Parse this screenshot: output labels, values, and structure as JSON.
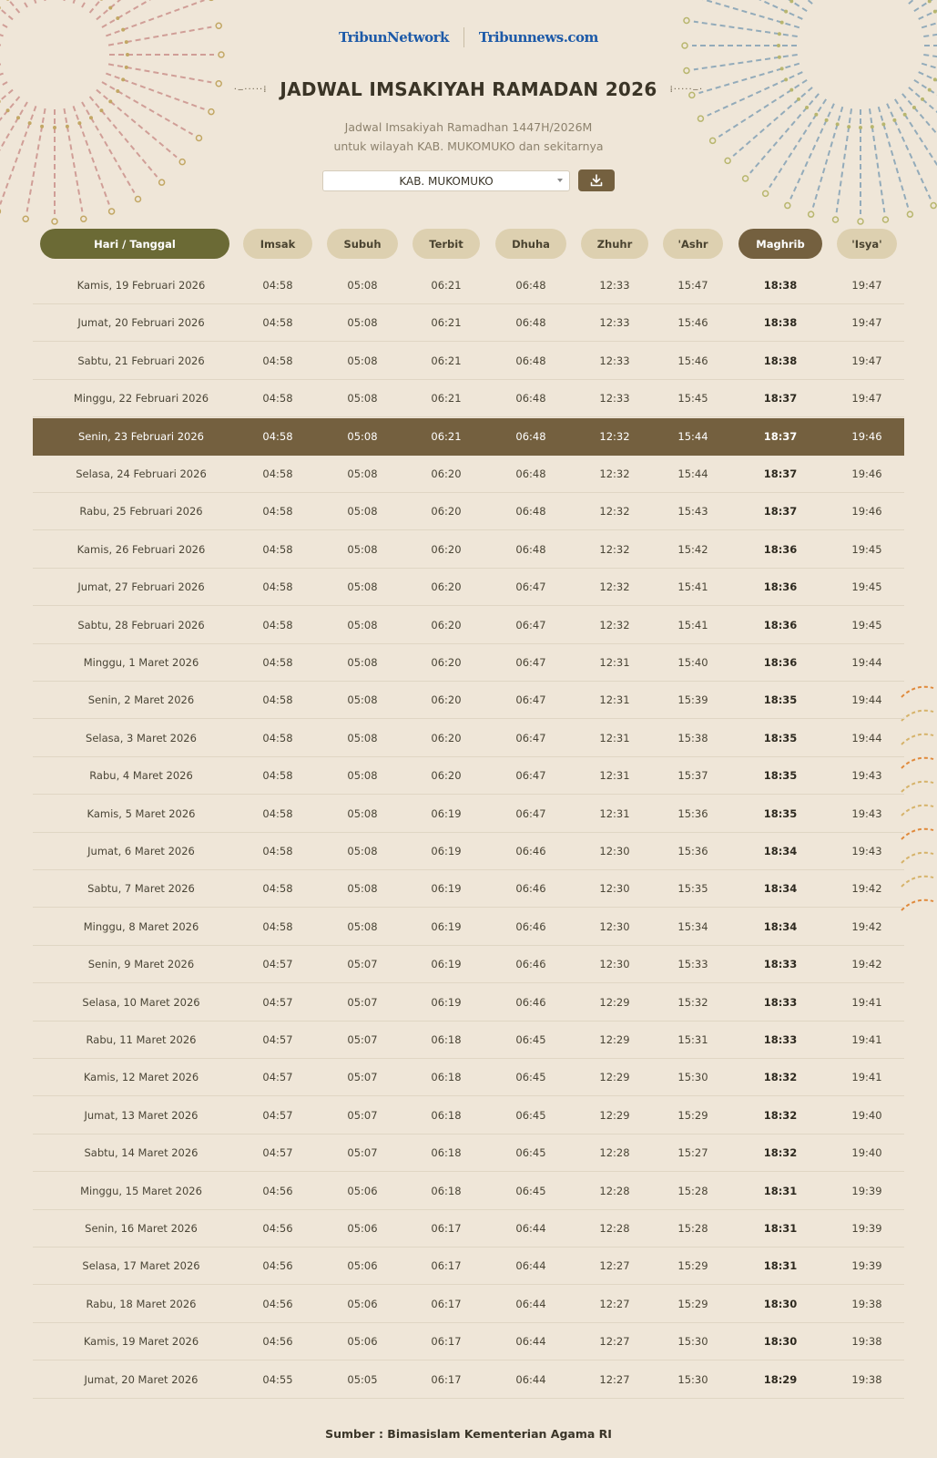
{
  "header": {
    "logos": [
      "TribunNetwork",
      "Tribunnews.com"
    ],
    "title": "JADWAL IMSAKIYAH RAMADAN 2026",
    "subtitle_line1": "Jadwal Imsakiyah Ramadhan 1447H/2026M",
    "subtitle_line2": "untuk wilayah KAB. MUKOMUKO dan sekitarnya",
    "region_select": "KAB. MUKOMUKO",
    "download_icon": "download-icon"
  },
  "colors": {
    "background": "#efe6d8",
    "pill": "#ddd0b0",
    "date_pill": "#6b6a35",
    "accent_brown": "#74603f"
  },
  "table": {
    "columns": [
      "Hari / Tanggal",
      "Imsak",
      "Subuh",
      "Terbit",
      "Dhuha",
      "Zhuhr",
      "'Ashr",
      "Maghrib",
      "'Isya'"
    ],
    "highlighted_row": "Senin, 23 Februari 2026",
    "rows": [
      [
        "Kamis, 19 Februari 2026",
        "04:58",
        "05:08",
        "06:21",
        "06:48",
        "12:33",
        "15:47",
        "18:38",
        "19:47"
      ],
      [
        "Jumat, 20 Februari 2026",
        "04:58",
        "05:08",
        "06:21",
        "06:48",
        "12:33",
        "15:46",
        "18:38",
        "19:47"
      ],
      [
        "Sabtu, 21 Februari 2026",
        "04:58",
        "05:08",
        "06:21",
        "06:48",
        "12:33",
        "15:46",
        "18:38",
        "19:47"
      ],
      [
        "Minggu, 22 Februari 2026",
        "04:58",
        "05:08",
        "06:21",
        "06:48",
        "12:33",
        "15:45",
        "18:37",
        "19:47"
      ],
      [
        "Senin, 23 Februari 2026",
        "04:58",
        "05:08",
        "06:21",
        "06:48",
        "12:32",
        "15:44",
        "18:37",
        "19:46"
      ],
      [
        "Selasa, 24 Februari 2026",
        "04:58",
        "05:08",
        "06:20",
        "06:48",
        "12:32",
        "15:44",
        "18:37",
        "19:46"
      ],
      [
        "Rabu, 25 Februari 2026",
        "04:58",
        "05:08",
        "06:20",
        "06:48",
        "12:32",
        "15:43",
        "18:37",
        "19:46"
      ],
      [
        "Kamis, 26 Februari 2026",
        "04:58",
        "05:08",
        "06:20",
        "06:48",
        "12:32",
        "15:42",
        "18:36",
        "19:45"
      ],
      [
        "Jumat, 27 Februari 2026",
        "04:58",
        "05:08",
        "06:20",
        "06:47",
        "12:32",
        "15:41",
        "18:36",
        "19:45"
      ],
      [
        "Sabtu, 28 Februari 2026",
        "04:58",
        "05:08",
        "06:20",
        "06:47",
        "12:32",
        "15:41",
        "18:36",
        "19:45"
      ],
      [
        "Minggu, 1 Maret 2026",
        "04:58",
        "05:08",
        "06:20",
        "06:47",
        "12:31",
        "15:40",
        "18:36",
        "19:44"
      ],
      [
        "Senin, 2 Maret 2026",
        "04:58",
        "05:08",
        "06:20",
        "06:47",
        "12:31",
        "15:39",
        "18:35",
        "19:44"
      ],
      [
        "Selasa, 3 Maret 2026",
        "04:58",
        "05:08",
        "06:20",
        "06:47",
        "12:31",
        "15:38",
        "18:35",
        "19:44"
      ],
      [
        "Rabu, 4 Maret 2026",
        "04:58",
        "05:08",
        "06:20",
        "06:47",
        "12:31",
        "15:37",
        "18:35",
        "19:43"
      ],
      [
        "Kamis, 5 Maret 2026",
        "04:58",
        "05:08",
        "06:19",
        "06:47",
        "12:31",
        "15:36",
        "18:35",
        "19:43"
      ],
      [
        "Jumat, 6 Maret 2026",
        "04:58",
        "05:08",
        "06:19",
        "06:46",
        "12:30",
        "15:36",
        "18:34",
        "19:43"
      ],
      [
        "Sabtu, 7 Maret 2026",
        "04:58",
        "05:08",
        "06:19",
        "06:46",
        "12:30",
        "15:35",
        "18:34",
        "19:42"
      ],
      [
        "Minggu, 8 Maret 2026",
        "04:58",
        "05:08",
        "06:19",
        "06:46",
        "12:30",
        "15:34",
        "18:34",
        "19:42"
      ],
      [
        "Senin, 9 Maret 2026",
        "04:57",
        "05:07",
        "06:19",
        "06:46",
        "12:30",
        "15:33",
        "18:33",
        "19:42"
      ],
      [
        "Selasa, 10 Maret 2026",
        "04:57",
        "05:07",
        "06:19",
        "06:46",
        "12:29",
        "15:32",
        "18:33",
        "19:41"
      ],
      [
        "Rabu, 11 Maret 2026",
        "04:57",
        "05:07",
        "06:18",
        "06:45",
        "12:29",
        "15:31",
        "18:33",
        "19:41"
      ],
      [
        "Kamis, 12 Maret 2026",
        "04:57",
        "05:07",
        "06:18",
        "06:45",
        "12:29",
        "15:30",
        "18:32",
        "19:41"
      ],
      [
        "Jumat, 13 Maret 2026",
        "04:57",
        "05:07",
        "06:18",
        "06:45",
        "12:29",
        "15:29",
        "18:32",
        "19:40"
      ],
      [
        "Sabtu, 14 Maret 2026",
        "04:57",
        "05:07",
        "06:18",
        "06:45",
        "12:28",
        "15:27",
        "18:32",
        "19:40"
      ],
      [
        "Minggu, 15 Maret 2026",
        "04:56",
        "05:06",
        "06:18",
        "06:45",
        "12:28",
        "15:28",
        "18:31",
        "19:39"
      ],
      [
        "Senin, 16 Maret 2026",
        "04:56",
        "05:06",
        "06:17",
        "06:44",
        "12:28",
        "15:28",
        "18:31",
        "19:39"
      ],
      [
        "Selasa, 17 Maret 2026",
        "04:56",
        "05:06",
        "06:17",
        "06:44",
        "12:27",
        "15:29",
        "18:31",
        "19:39"
      ],
      [
        "Rabu, 18 Maret 2026",
        "04:56",
        "05:06",
        "06:17",
        "06:44",
        "12:27",
        "15:29",
        "18:30",
        "19:38"
      ],
      [
        "Kamis, 19 Maret 2026",
        "04:56",
        "05:06",
        "06:17",
        "06:44",
        "12:27",
        "15:30",
        "18:30",
        "19:38"
      ],
      [
        "Jumat, 20 Maret 2026",
        "04:55",
        "05:05",
        "06:17",
        "06:44",
        "12:27",
        "15:30",
        "18:29",
        "19:38"
      ]
    ]
  },
  "footer": "Sumber : Bimasislam Kementerian Agama RI"
}
